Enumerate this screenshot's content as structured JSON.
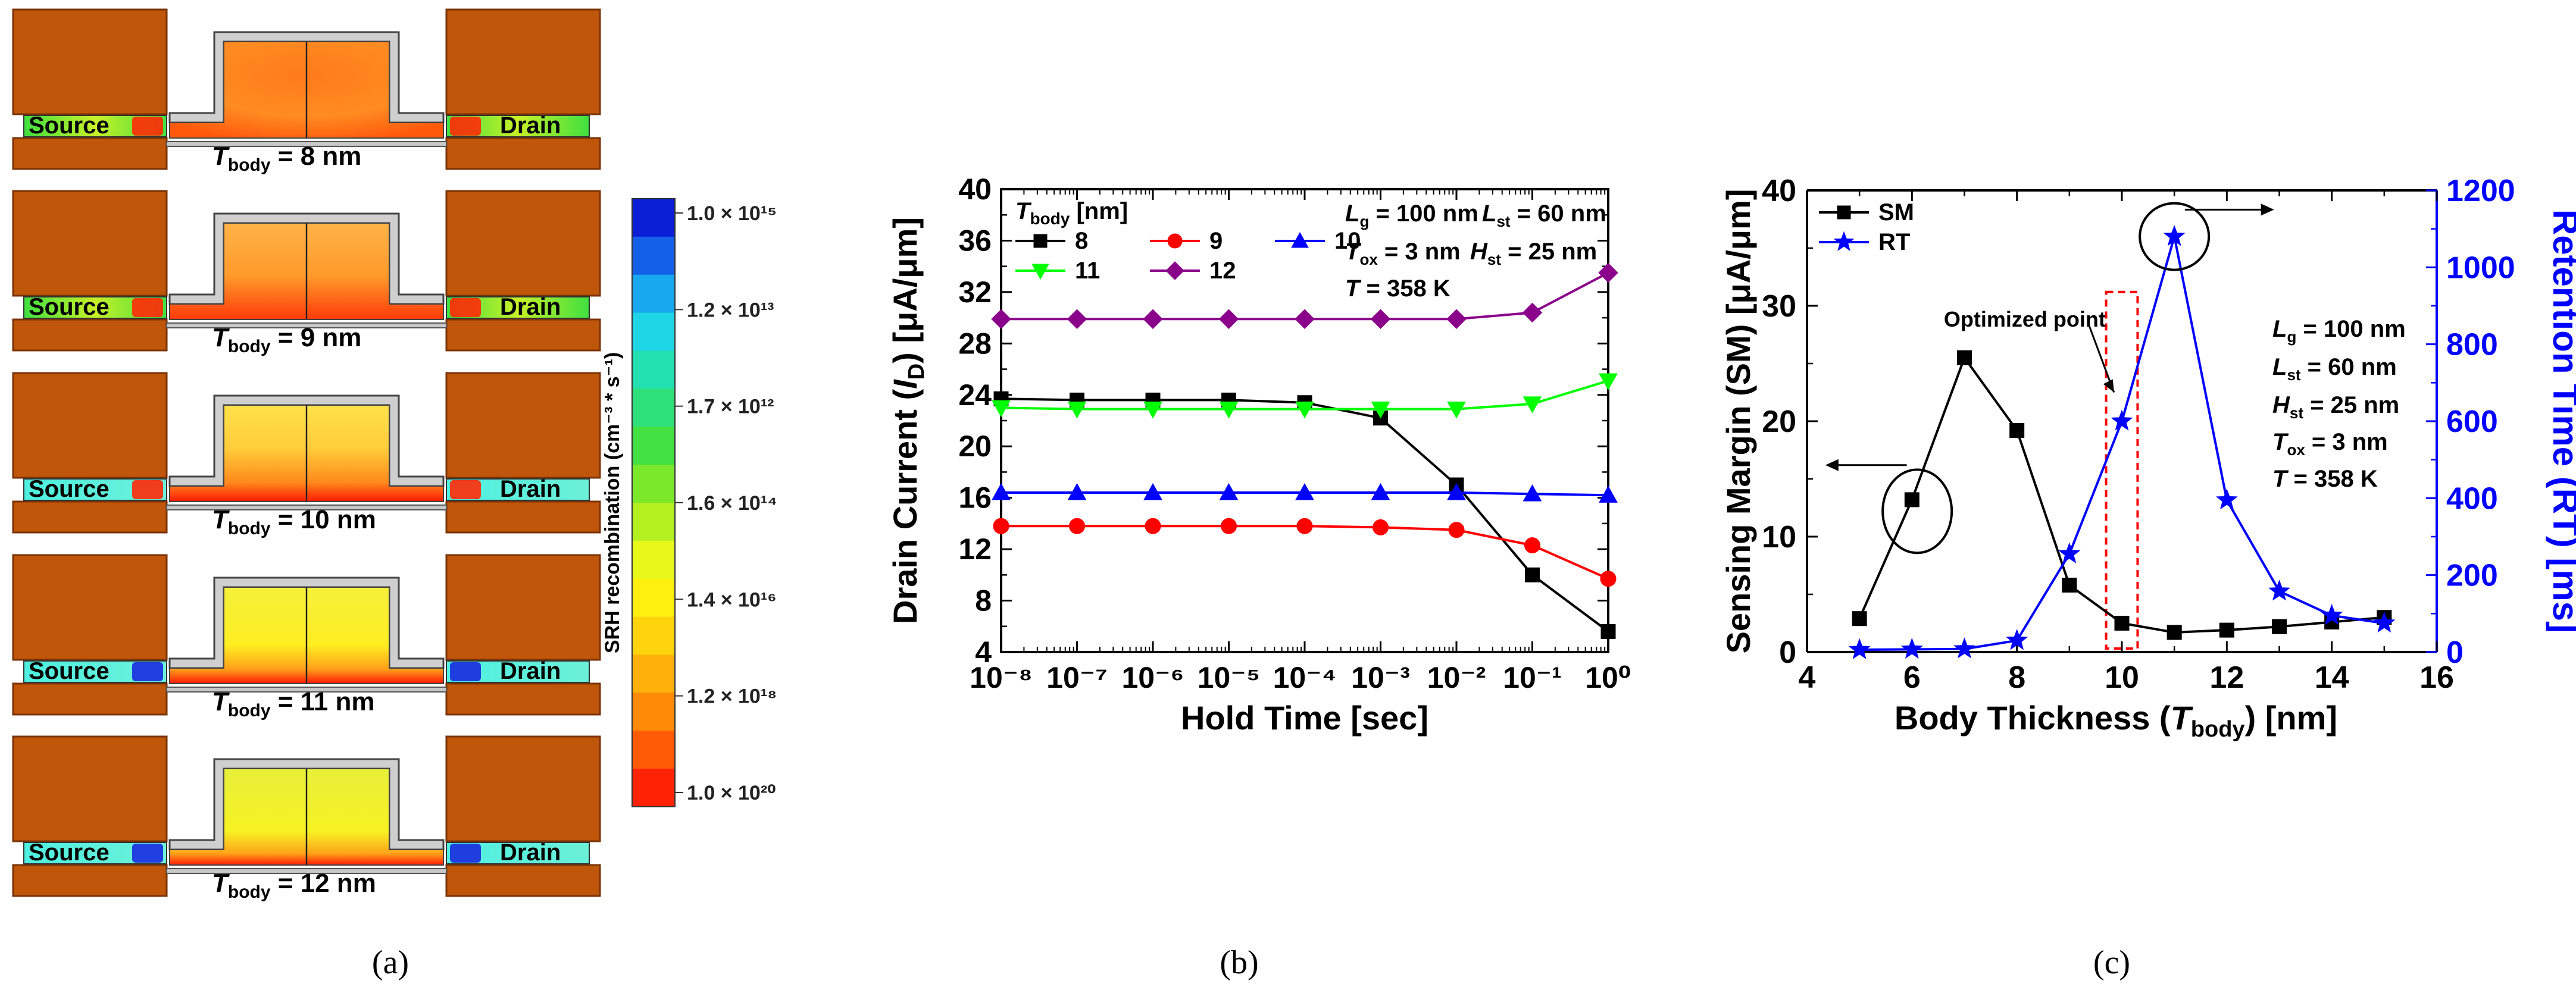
{
  "panels": {
    "a": {
      "caption_letter": "a",
      "source_label": "Source",
      "drain_label": "Drain",
      "rows": [
        {
          "tbody_value": "8",
          "unit": "nm"
        },
        {
          "tbody_value": "9",
          "unit": "nm"
        },
        {
          "tbody_value": "10",
          "unit": "nm"
        },
        {
          "tbody_value": "11",
          "unit": "nm"
        },
        {
          "tbody_value": "12",
          "unit": "nm"
        }
      ],
      "colorbar": {
        "title": "SRH recombination (cm⁻³ * s⁻¹)",
        "ticks": [
          "1.0 × 10¹⁵",
          "1.2 × 10¹³",
          "1.7 × 10¹²",
          "1.6 × 10¹⁴",
          "1.4 × 10¹⁶",
          "1.2 × 10¹⁸",
          "1.0 × 10²⁰"
        ],
        "colors": [
          "#0a1fd6",
          "#1560e8",
          "#18a8f0",
          "#1fd6e6",
          "#22e0b0",
          "#2ee07a",
          "#42e040",
          "#7ce82a",
          "#b4f020",
          "#e8f81a",
          "#fff010",
          "#ffd40c",
          "#ffb00a",
          "#ff8a08",
          "#ff5a06",
          "#ff2204"
        ]
      }
    },
    "b": {
      "caption_letter": "b",
      "legend_title": "T",
      "legend_title_sub": "body",
      "legend_title_unit": "[nm]",
      "params": [
        {
          "sym": "L",
          "sub": "g",
          "val": "= 100 nm"
        },
        {
          "sym": "L",
          "sub": "st",
          "val": "= 60 nm"
        },
        {
          "sym": "T",
          "sub": "ox",
          "val": "= 3 nm"
        },
        {
          "sym": "H",
          "sub": "st",
          "val": "= 25 nm"
        },
        {
          "sym": "T",
          "sub": "",
          "val": "= 358 K"
        }
      ]
    },
    "c": {
      "caption_letter": "c",
      "legend": [
        "SM",
        "RT"
      ],
      "optimized_label": "Optimized point",
      "params": [
        {
          "sym": "L",
          "sub": "g",
          "val": "= 100 nm"
        },
        {
          "sym": "L",
          "sub": "st",
          "val": "= 60 nm"
        },
        {
          "sym": "H",
          "sub": "st",
          "val": "= 25 nm"
        },
        {
          "sym": "T",
          "sub": "ox",
          "val": "= 3 nm"
        },
        {
          "sym": "T",
          "sub": "",
          "val": "= 358 K"
        }
      ]
    }
  },
  "chart_data": [
    {
      "id": "b",
      "type": "line",
      "xlabel": "Hold Time [sec]",
      "ylabel": "Drain Current (I_D) [μA/μm]",
      "ylabel_pre": "Drain Current (",
      "ylabel_sym": "I",
      "ylabel_sub": "D",
      "ylabel_post": ") [μA/μm]",
      "xscale": "log",
      "xlim_exp": [
        -8,
        0
      ],
      "ylim": [
        4,
        40
      ],
      "x_tick_labels": [
        "10⁻⁸",
        "10⁻⁷",
        "10⁻⁶",
        "10⁻⁵",
        "10⁻⁴",
        "10⁻³",
        "10⁻²",
        "10⁻¹",
        "10⁰"
      ],
      "y_ticks": [
        4,
        8,
        12,
        16,
        20,
        24,
        28,
        32,
        36,
        40
      ],
      "x_exp": [
        -8,
        -7,
        -6,
        -5,
        -4,
        -3,
        -2,
        -1,
        0
      ],
      "series": [
        {
          "name": "8",
          "color": "#000000",
          "marker": "square",
          "values": [
            23.7,
            23.6,
            23.6,
            23.6,
            23.4,
            22.2,
            17.0,
            10.0,
            5.6
          ]
        },
        {
          "name": "9",
          "color": "#ff0000",
          "marker": "circle",
          "values": [
            13.8,
            13.8,
            13.8,
            13.8,
            13.8,
            13.7,
            13.5,
            12.3,
            9.7
          ]
        },
        {
          "name": "10",
          "color": "#0000ff",
          "marker": "triangle-up",
          "values": [
            16.4,
            16.4,
            16.4,
            16.4,
            16.4,
            16.4,
            16.4,
            16.3,
            16.2
          ]
        },
        {
          "name": "11",
          "color": "#00ff00",
          "marker": "triangle-down",
          "values": [
            23.0,
            22.9,
            22.9,
            22.9,
            22.9,
            22.9,
            22.9,
            23.3,
            25.1
          ]
        },
        {
          "name": "12",
          "color": "#8b008b",
          "marker": "diamond",
          "values": [
            29.9,
            29.9,
            29.9,
            29.9,
            29.9,
            29.9,
            29.9,
            30.4,
            33.5
          ]
        }
      ]
    },
    {
      "id": "c",
      "type": "line",
      "xlabel": "Body Thickness (T_body) [nm]",
      "xlabel_pre": "Body Thickness (",
      "xlabel_sym": "T",
      "xlabel_sub": "body",
      "xlabel_post": ") [nm]",
      "ylabel_left": "Sensing Margin (SM) [μA/μm]",
      "ylabel_right": "Retention Time (RT) [ms]",
      "xlim": [
        4,
        16
      ],
      "x_ticks": [
        4,
        6,
        8,
        10,
        12,
        14,
        16
      ],
      "ylim_left": [
        0,
        40
      ],
      "y_ticks_left": [
        0,
        10,
        20,
        30,
        40
      ],
      "ylim_right": [
        0,
        1200
      ],
      "y_ticks_right": [
        0,
        200,
        400,
        600,
        800,
        1000,
        1200
      ],
      "x": [
        5,
        6,
        7,
        8,
        9,
        10,
        11,
        12,
        13,
        14,
        15
      ],
      "series": [
        {
          "name": "SM",
          "axis": "left",
          "color": "#000000",
          "marker": "square",
          "values": [
            2.9,
            13.2,
            25.5,
            19.2,
            5.8,
            2.5,
            1.7,
            1.9,
            2.2,
            2.6,
            3.0
          ]
        },
        {
          "name": "RT",
          "axis": "right",
          "color": "#0000ff",
          "marker": "star",
          "values": [
            6,
            7,
            8,
            30,
            255,
            600,
            1080,
            395,
            158,
            95,
            75
          ]
        }
      ]
    }
  ]
}
